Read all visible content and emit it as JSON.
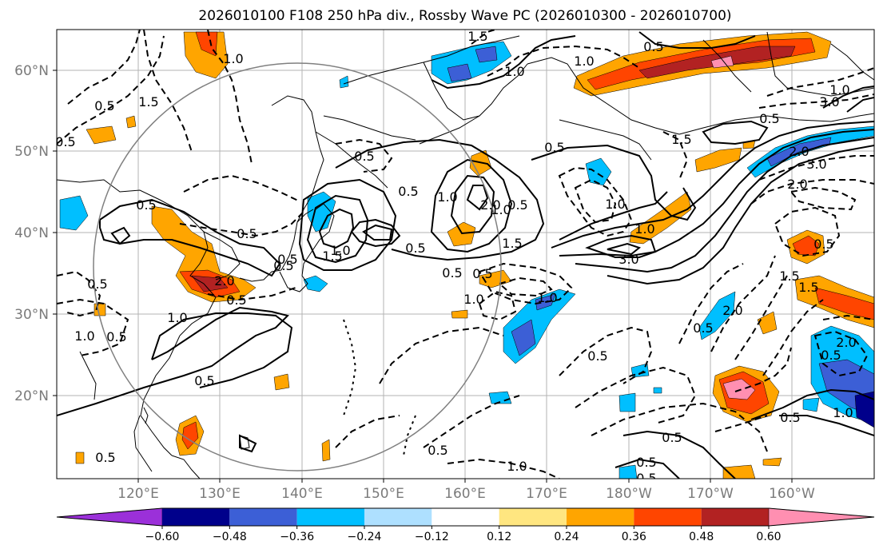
{
  "title": "2026010100 F108 250 hPa div., Rossby Wave PC (2026010300 - 2026010700)",
  "lat_labels": [
    "60°N",
    "50°N",
    "40°N",
    "30°N",
    "20°N"
  ],
  "lon_labels": [
    "120°E",
    "130°E",
    "140°E",
    "150°E",
    "160°E",
    "170°E",
    "180°W",
    "170°W",
    "160°W"
  ],
  "colorbar": {
    "ticks": [
      "−0.60",
      "−0.48",
      "−0.36",
      "−0.24",
      "−0.12",
      "0.12",
      "0.24",
      "0.36",
      "0.48",
      "0.60"
    ],
    "colors": [
      "#9b30d9",
      "#00008b",
      "#3c5fd6",
      "#00bfff",
      "#aee0ff",
      "#ffffff",
      "#ffe680",
      "#ffa500",
      "#ff4500",
      "#b22222",
      "#ff8fb1"
    ]
  },
  "contour_labels": {
    "l01": "1.5",
    "l02": "0.5",
    "l03": "1.0",
    "l04": "1.0",
    "l05": "0.5",
    "l06": "1.5",
    "l07": "1.0",
    "l08": "0.5",
    "l09": "0.5",
    "l10": "0.5",
    "l11": "0.5",
    "l12": "1.0",
    "l13": "2.0",
    "l14": "2.0",
    "l15": "0.5",
    "l16": "1.0",
    "l17": "1.5",
    "l18": "1.0",
    "l19": "3.0",
    "l20": "0.5",
    "l21": "0.5",
    "l22": "0.5",
    "l23": "1.0",
    "l24": "1.5",
    "l25": "0.5",
    "l26": "0.5",
    "l27": "1.0",
    "l28": "0.5",
    "l29": "1.0",
    "l30": "2.0",
    "l31": "3.0",
    "l32": "2.0",
    "l33": "0.5",
    "l34": "1.5",
    "l35": "2.0",
    "l36": "0.5",
    "l37": "1.0",
    "l38": "0.5",
    "l39": "0.5",
    "l40": "1.0",
    "l41": "0.5",
    "l42": "0.5",
    "l43": "0.5",
    "l44": "1.0",
    "l45": "1.5",
    "l46": "1.0",
    "l47": "0.5",
    "l48": "0.5",
    "l49": "1.0",
    "l50": "1.0",
    "l51": "3.0",
    "l52": "0.5",
    "l53": "0.5",
    "l54": "1.5",
    "l55": "2.0",
    "l56": "0.5",
    "l57": "0.5",
    "l58": "0.5",
    "l59": "0.5",
    "l60": "0.5"
  }
}
